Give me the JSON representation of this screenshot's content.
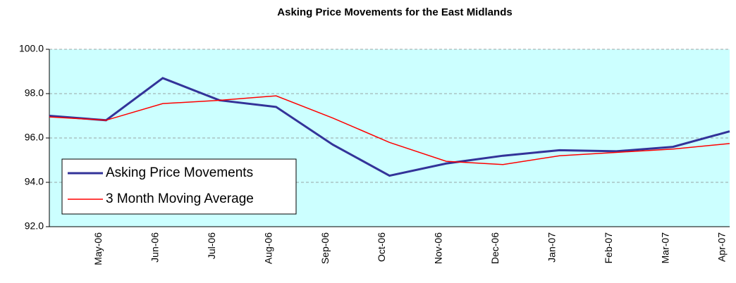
{
  "chart_data": {
    "type": "line",
    "title": "Asking Price Movements for the East Midlands",
    "categories": [
      null,
      "May-06",
      "Jun-06",
      "Jul-06",
      "Aug-06",
      "Sep-06",
      "Oct-06",
      "Nov-06",
      "Dec-06",
      "Jan-07",
      "Feb-07",
      "Mar-07",
      "Apr-07"
    ],
    "series": [
      {
        "name": "Asking Price Movements",
        "color": "#333399",
        "values": [
          97.0,
          96.8,
          98.7,
          97.7,
          97.4,
          95.7,
          94.3,
          94.85,
          95.2,
          95.45,
          95.4,
          95.6,
          96.3
        ]
      },
      {
        "name": "3 Month Moving Average",
        "color": "#ff0000",
        "values": [
          96.95,
          96.8,
          97.55,
          97.7,
          97.9,
          96.9,
          95.8,
          94.95,
          94.8,
          95.2,
          95.35,
          95.5,
          95.75
        ]
      }
    ],
    "ylim": [
      92,
      100
    ],
    "yticks": [
      {
        "value": 92,
        "label": "92.0"
      },
      {
        "value": 94,
        "label": "94.0"
      },
      {
        "value": 96,
        "label": "96.0"
      },
      {
        "value": 98,
        "label": "98.0"
      },
      {
        "value": 100,
        "label": "100.0"
      }
    ],
    "grid": true,
    "legend": "lower left"
  }
}
